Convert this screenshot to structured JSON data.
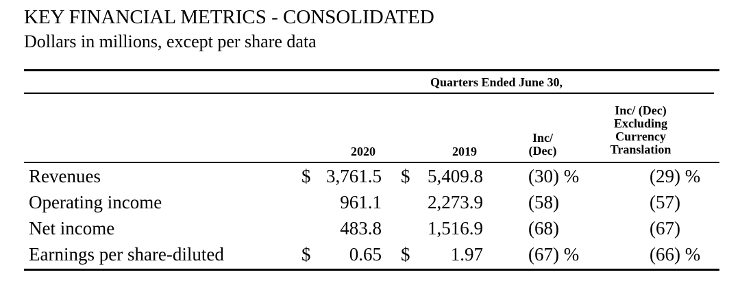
{
  "title": "KEY FINANCIAL METRICS - CONSOLIDATED",
  "subtitle": "Dollars in millions, except per share data",
  "table": {
    "group_header": "Quarters Ended June 30,",
    "columns": {
      "y2020": "2020",
      "y2019": "2019",
      "inc_dec": [
        "Inc/",
        "(Dec)"
      ],
      "ex_currency": [
        "Inc/ (Dec)",
        "Excluding",
        "Currency",
        "Translation"
      ]
    },
    "rows": [
      {
        "label": "Revenues",
        "cur2020": "$",
        "v2020": "3,761.5",
        "cur2019": "$",
        "v2019": "5,409.8",
        "inc_dec": "(30) %",
        "ex_currency": "(29) %"
      },
      {
        "label": "Operating income",
        "cur2020": "",
        "v2020": "961.1",
        "cur2019": "",
        "v2019": "2,273.9",
        "inc_dec": "(58)",
        "ex_currency": "(57)"
      },
      {
        "label": "Net income",
        "cur2020": "",
        "v2020": "483.8",
        "cur2019": "",
        "v2019": "1,516.9",
        "inc_dec": "(68)",
        "ex_currency": "(67)"
      },
      {
        "label": "Earnings per share-diluted",
        "cur2020": "$",
        "v2020": "0.65",
        "cur2019": "$",
        "v2019": "1.97",
        "inc_dec": "(67) %",
        "ex_currency": "(66) %"
      }
    ]
  }
}
